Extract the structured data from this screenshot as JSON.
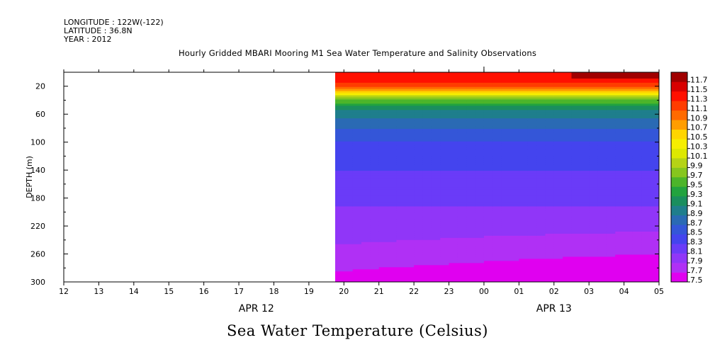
{
  "header": {
    "longitude": "LONGITUDE : 122W(-122)",
    "latitude": "LATITUDE : 36.8N",
    "year": "YEAR : 2012"
  },
  "title": "Hourly Gridded MBARI Mooring M1 Sea Water Temperature and Salinity Observations",
  "footer_title": "Sea Water Temperature (Celsius)",
  "chart_data": {
    "type": "heatmap",
    "title": "Hourly Gridded MBARI Mooring M1 Sea Water Temperature and Salinity Observations",
    "xlabel": "",
    "ylabel": "DEPTH (m)",
    "x_tick_labels": [
      "12",
      "13",
      "14",
      "15",
      "16",
      "17",
      "18",
      "19",
      "20",
      "21",
      "22",
      "23",
      "00",
      "01",
      "02",
      "03",
      "04",
      "05"
    ],
    "date_labels": [
      {
        "label": "APR 12",
        "at_hour_index": 5.5
      },
      {
        "label": "APR 13",
        "at_hour_index": 14
      }
    ],
    "y_ticks": [
      20,
      60,
      100,
      140,
      180,
      220,
      260,
      300
    ],
    "ylim": [
      300,
      0
    ],
    "y_axis_top_depth": 0,
    "data_start_hour_index": 7.75,
    "colorbar": {
      "levels": [
        7.5,
        7.7,
        7.9,
        8.1,
        8.3,
        8.5,
        8.7,
        8.9,
        9.1,
        9.3,
        9.5,
        9.7,
        9.9,
        10.1,
        10.3,
        10.5,
        10.7,
        10.9,
        11.1,
        11.3,
        11.5,
        11.7
      ],
      "colors": [
        "#e000f0",
        "#b030f5",
        "#9036f8",
        "#6a3bf8",
        "#4444ee",
        "#3456d8",
        "#2a6ab4",
        "#1f7e8c",
        "#1a8e5e",
        "#22a33f",
        "#4cb52a",
        "#86c61e",
        "#b5d315",
        "#dde800",
        "#f6ee00",
        "#ffd500",
        "#ff9d00",
        "#ff6a00",
        "#ff3c00",
        "#ff1000",
        "#d80000",
        "#a00000"
      ]
    },
    "depth_profile": [
      {
        "depth": 5,
        "temp": 11.5
      },
      {
        "depth": 15,
        "temp": 11.3
      },
      {
        "depth": 25,
        "temp": 10.9
      },
      {
        "depth": 32,
        "temp": 10.3
      },
      {
        "depth": 38,
        "temp": 9.8
      },
      {
        "depth": 50,
        "temp": 9.2
      },
      {
        "depth": 70,
        "temp": 8.8
      },
      {
        "depth": 100,
        "temp": 8.5
      },
      {
        "depth": 140,
        "temp": 8.3
      },
      {
        "depth": 180,
        "temp": 8.15
      },
      {
        "depth": 220,
        "temp": 8.0
      },
      {
        "depth": 260,
        "temp": 7.85
      },
      {
        "depth": 285,
        "temp": 7.7
      },
      {
        "depth": 300,
        "temp": 7.6
      }
    ],
    "surface_warm_end_hour_index": 17
  }
}
